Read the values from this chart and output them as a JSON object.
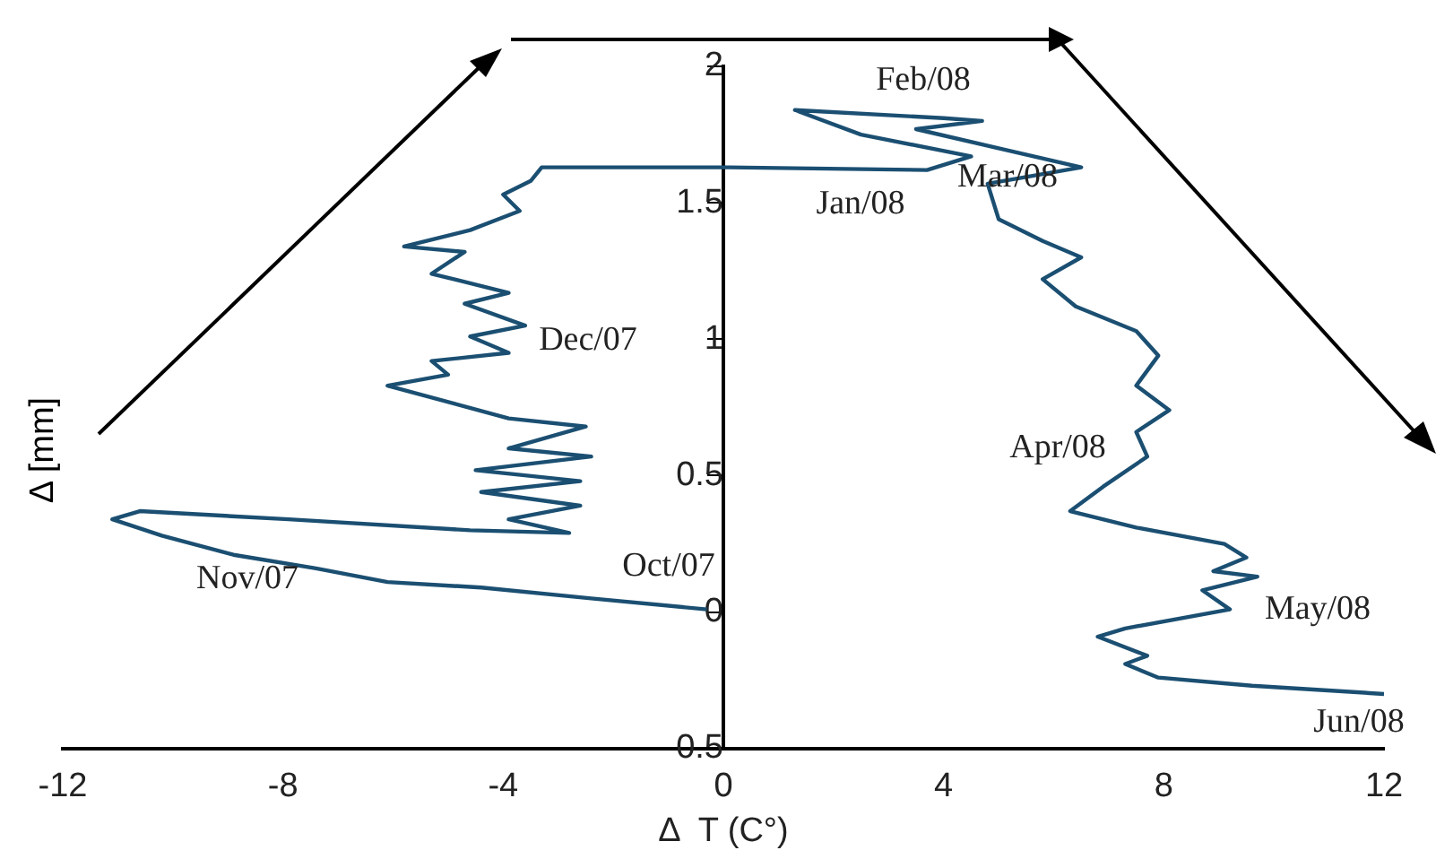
{
  "chart_data": {
    "type": "line",
    "xlabel": "Δ  T (C°)",
    "ylabel": "Δ [mm]",
    "series": [
      {
        "color": "#1b4f72",
        "x": [
          -0.3,
          -2.4,
          -4.4,
          -6.1,
          -7.4,
          -8.9,
          -10.2,
          -11.1,
          -10.6,
          -7.9,
          -4.6,
          -2.8,
          -3.9,
          -2.6,
          -4.4,
          -2.6,
          -4.5,
          -2.4,
          -3.9,
          -2.5,
          -3.9,
          -6.1,
          -5.0,
          -5.3,
          -3.9,
          -4.6,
          -3.6,
          -4.7,
          -3.9,
          -5.3,
          -4.7,
          -5.8,
          -4.6,
          -3.7,
          -4.0,
          -3.5,
          -3.3,
          0.1,
          3.7,
          4.5,
          2.5,
          1.3,
          4.0,
          4.7,
          3.5,
          5.0,
          6.5,
          4.8,
          5.0,
          5.8,
          6.5,
          5.8,
          6.4,
          7.5,
          7.9,
          7.5,
          8.1,
          7.5,
          7.7,
          6.9,
          6.3,
          7.5,
          9.1,
          9.5,
          8.9,
          9.7,
          8.7,
          9.2,
          7.3,
          6.8,
          7.7,
          7.3,
          7.9,
          9.6,
          12.0
        ],
        "values": [
          0.01,
          0.05,
          0.09,
          0.11,
          0.16,
          0.21,
          0.28,
          0.34,
          0.37,
          0.34,
          0.3,
          0.29,
          0.34,
          0.39,
          0.44,
          0.48,
          0.52,
          0.57,
          0.6,
          0.68,
          0.71,
          0.83,
          0.87,
          0.92,
          0.95,
          1.01,
          1.05,
          1.13,
          1.17,
          1.24,
          1.32,
          1.34,
          1.4,
          1.47,
          1.53,
          1.58,
          1.63,
          1.63,
          1.62,
          1.67,
          1.75,
          1.84,
          1.81,
          1.8,
          1.77,
          1.7,
          1.63,
          1.57,
          1.44,
          1.36,
          1.3,
          1.22,
          1.12,
          1.03,
          0.94,
          0.83,
          0.74,
          0.66,
          0.57,
          0.46,
          0.37,
          0.31,
          0.25,
          0.2,
          0.15,
          0.13,
          0.08,
          0.01,
          -0.06,
          -0.09,
          -0.16,
          -0.19,
          -0.24,
          -0.27,
          -0.3
        ]
      }
    ],
    "xlim": [
      -12,
      12
    ],
    "xticks": [
      -12,
      -8,
      -4,
      0,
      4,
      8,
      12
    ],
    "ylim": [
      -0.5,
      2
    ],
    "yticks": [
      {
        "value": -0.5,
        "label": "0.5"
      },
      0,
      0.5,
      1,
      1.5,
      2
    ],
    "grid": false,
    "legend": false,
    "marker": "none",
    "line_style": "solid",
    "annotations": [
      "Oct/07",
      "Nov/07",
      "Dec/07",
      "Jan/08",
      "Feb/08",
      "Mar/08",
      "Apr/08",
      "May/08",
      "Jun/08"
    ]
  }
}
